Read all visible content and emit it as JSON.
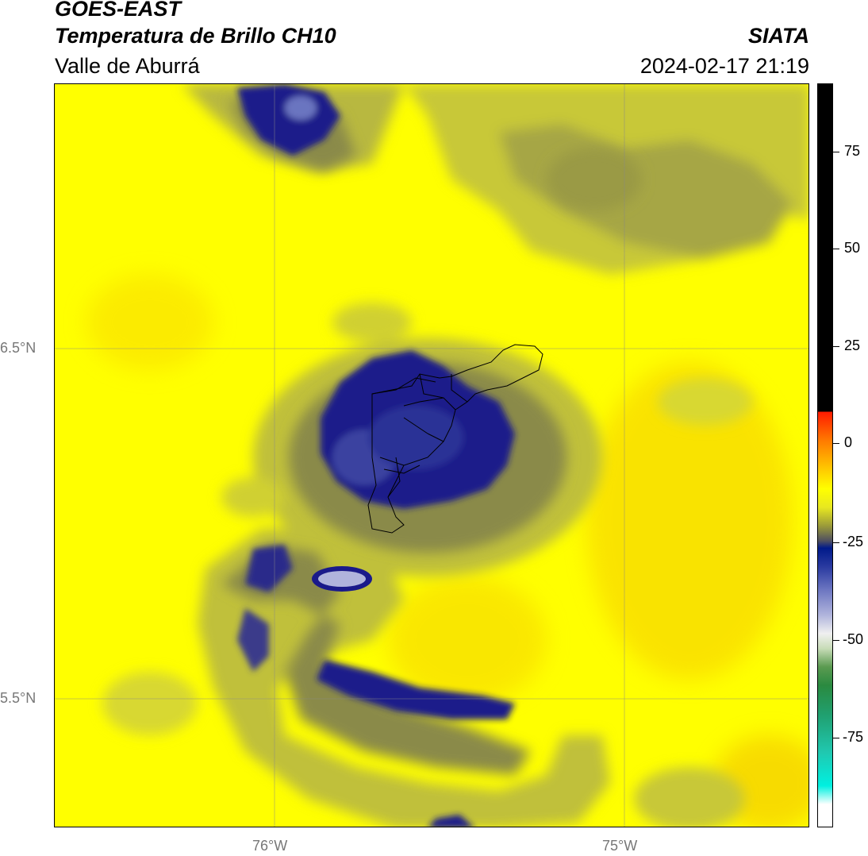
{
  "header": {
    "satellite": "GOES-EAST",
    "product": "Temperatura de Brillo CH10",
    "region": "Valle de Aburrá",
    "organization": "SIATA",
    "datetime": "2024-02-17 21:19"
  },
  "map": {
    "lat_labels": [
      "6.5°N",
      "5.5°N"
    ],
    "lon_labels": [
      "76°W",
      "75°W"
    ]
  },
  "colorbar": {
    "ticks": [
      "75",
      "50",
      "25",
      "0",
      "-25",
      "-50",
      "-75"
    ],
    "colors": {
      "warm": "#ffff00",
      "mid": "#9a9a3a",
      "cold": "#1a1a8a",
      "coldest": "#b0b4dc",
      "above": "#000000",
      "hot": "#ff1a00"
    }
  }
}
